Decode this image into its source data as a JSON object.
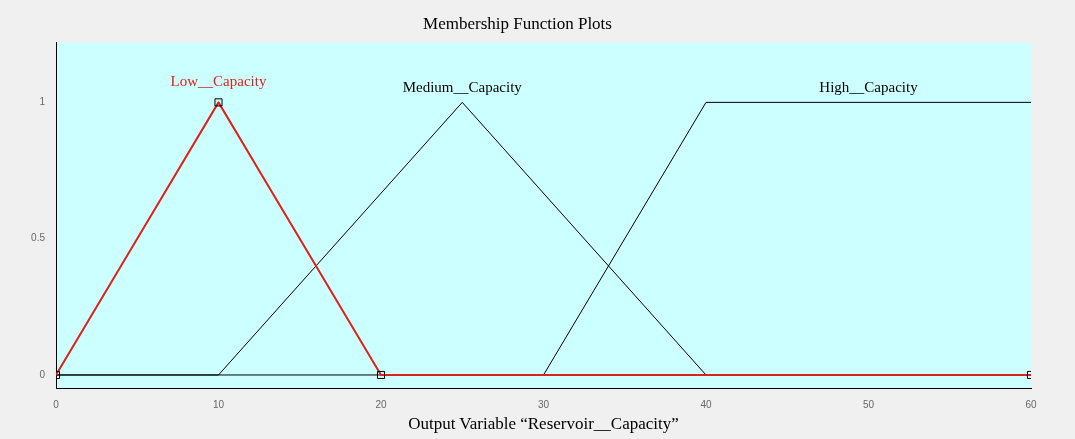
{
  "chart_data": {
    "type": "line",
    "title": "Membership Function Plots",
    "xlabel": "Output Variable “Reservoir__Capacity”",
    "xlim": [
      0,
      60
    ],
    "xticks": [
      0,
      10,
      20,
      30,
      40,
      50,
      60
    ],
    "ylim": [
      -0.05,
      1.22
    ],
    "yticks": [
      0,
      0.5,
      1
    ],
    "grid": false,
    "legend": false,
    "marker": "none",
    "line_style": "solid",
    "series": [
      {
        "name": "Low__Capacity",
        "color": "#e0201b",
        "x": [
          0,
          10,
          20,
          60
        ],
        "values": [
          0,
          1,
          0,
          0
        ],
        "marker": "square"
      },
      {
        "name": "Medium__Capacity",
        "color": "#000000",
        "x": [
          0,
          10,
          25,
          40,
          60
        ],
        "values": [
          0,
          0,
          1,
          0,
          0
        ]
      },
      {
        "name": "High__Capacity",
        "color": "#000000",
        "x": [
          0,
          30,
          40,
          60
        ],
        "values": [
          0,
          0,
          1,
          1
        ]
      }
    ]
  }
}
